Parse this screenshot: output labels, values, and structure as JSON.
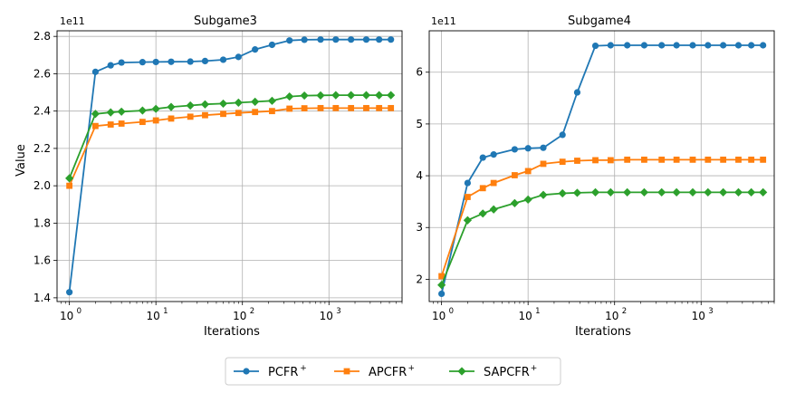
{
  "chart_data": [
    {
      "type": "line",
      "title": "Subgame3",
      "xlabel": "Iterations",
      "ylabel": "Value",
      "xscale": "log",
      "xlim": [
        0.72,
        7000
      ],
      "ylim": [
        1.38,
        2.83
      ],
      "y_multiplier": "1e11",
      "xticks": [
        1,
        10,
        100,
        1000
      ],
      "xtick_labels": [
        {
          "base": "10",
          "exp": "0"
        },
        {
          "base": "10",
          "exp": "1"
        },
        {
          "base": "10",
          "exp": "2"
        },
        {
          "base": "10",
          "exp": "3"
        }
      ],
      "yticks": [
        1.4,
        1.6,
        1.8,
        2.0,
        2.2,
        2.4,
        2.6,
        2.8
      ],
      "ytick_labels": [
        "1.4",
        "1.6",
        "1.8",
        "2.0",
        "2.2",
        "2.4",
        "2.6",
        "2.8"
      ],
      "grid": true,
      "series": [
        {
          "name": "PCFR+",
          "color": "#1f77b4",
          "marker": "circle",
          "x": [
            1,
            2,
            3,
            4,
            7,
            10,
            15,
            25,
            37,
            60,
            90,
            140,
            220,
            350,
            520,
            800,
            1200,
            1800,
            2700,
            3800,
            5200
          ],
          "y": [
            1.43,
            2.61,
            2.645,
            2.66,
            2.662,
            2.663,
            2.664,
            2.665,
            2.668,
            2.675,
            2.69,
            2.73,
            2.755,
            2.778,
            2.782,
            2.783,
            2.783,
            2.783,
            2.783,
            2.783,
            2.783
          ]
        },
        {
          "name": "APCFR+",
          "color": "#ff7f0e",
          "marker": "square",
          "x": [
            1,
            2,
            3,
            4,
            7,
            10,
            15,
            25,
            37,
            60,
            90,
            140,
            220,
            350,
            520,
            800,
            1200,
            1800,
            2700,
            3800,
            5200
          ],
          "y": [
            2.0,
            2.32,
            2.328,
            2.333,
            2.342,
            2.35,
            2.36,
            2.37,
            2.378,
            2.385,
            2.39,
            2.395,
            2.4,
            2.413,
            2.415,
            2.416,
            2.416,
            2.416,
            2.416,
            2.416,
            2.416
          ]
        },
        {
          "name": "SAPCFR+",
          "color": "#2ca02c",
          "marker": "diamond",
          "x": [
            1,
            2,
            3,
            4,
            7,
            10,
            15,
            25,
            37,
            60,
            90,
            140,
            220,
            350,
            520,
            800,
            1200,
            1800,
            2700,
            3800,
            5200
          ],
          "y": [
            2.04,
            2.385,
            2.393,
            2.397,
            2.403,
            2.412,
            2.422,
            2.43,
            2.436,
            2.44,
            2.445,
            2.45,
            2.455,
            2.478,
            2.483,
            2.484,
            2.485,
            2.485,
            2.485,
            2.485,
            2.485
          ]
        }
      ]
    },
    {
      "type": "line",
      "title": "Subgame4",
      "xlabel": "Iterations",
      "ylabel": "",
      "xscale": "log",
      "xlim": [
        0.72,
        7000
      ],
      "ylim": [
        1.57,
        6.8
      ],
      "y_multiplier": "1e11",
      "xticks": [
        1,
        10,
        100,
        1000
      ],
      "xtick_labels": [
        {
          "base": "10",
          "exp": "0"
        },
        {
          "base": "10",
          "exp": "1"
        },
        {
          "base": "10",
          "exp": "2"
        },
        {
          "base": "10",
          "exp": "3"
        }
      ],
      "yticks": [
        2,
        3,
        4,
        5,
        6
      ],
      "ytick_labels": [
        "2",
        "3",
        "4",
        "5",
        "6"
      ],
      "grid": true,
      "series": [
        {
          "name": "PCFR+",
          "color": "#1f77b4",
          "marker": "circle",
          "x": [
            1,
            2,
            3,
            4,
            7,
            10,
            15,
            25,
            37,
            60,
            90,
            140,
            220,
            350,
            520,
            800,
            1200,
            1800,
            2700,
            3800,
            5200
          ],
          "y": [
            1.72,
            3.86,
            4.35,
            4.41,
            4.51,
            4.53,
            4.54,
            4.79,
            5.61,
            6.51,
            6.52,
            6.52,
            6.52,
            6.52,
            6.52,
            6.52,
            6.52,
            6.52,
            6.52,
            6.52,
            6.52
          ]
        },
        {
          "name": "APCFR+",
          "color": "#ff7f0e",
          "marker": "square",
          "x": [
            1,
            2,
            3,
            4,
            7,
            10,
            15,
            25,
            37,
            60,
            90,
            140,
            220,
            350,
            520,
            800,
            1200,
            1800,
            2700,
            3800,
            5200
          ],
          "y": [
            2.06,
            3.59,
            3.76,
            3.86,
            4.01,
            4.09,
            4.23,
            4.27,
            4.29,
            4.3,
            4.3,
            4.31,
            4.31,
            4.31,
            4.31,
            4.31,
            4.31,
            4.31,
            4.31,
            4.31,
            4.31
          ]
        },
        {
          "name": "SAPCFR+",
          "color": "#2ca02c",
          "marker": "diamond",
          "x": [
            1,
            2,
            3,
            4,
            7,
            10,
            15,
            25,
            37,
            60,
            90,
            140,
            220,
            350,
            520,
            800,
            1200,
            1800,
            2700,
            3800,
            5200
          ],
          "y": [
            1.89,
            3.14,
            3.27,
            3.35,
            3.47,
            3.54,
            3.63,
            3.66,
            3.67,
            3.68,
            3.68,
            3.68,
            3.68,
            3.68,
            3.68,
            3.68,
            3.68,
            3.68,
            3.68,
            3.68,
            3.68
          ]
        }
      ]
    }
  ],
  "legend": {
    "placement": "bottom-center",
    "entries": [
      {
        "base": "PCFR",
        "sup": "+",
        "color": "#1f77b4",
        "marker": "circle"
      },
      {
        "base": "APCFR",
        "sup": "+",
        "color": "#ff7f0e",
        "marker": "square"
      },
      {
        "base": "SAPCFR",
        "sup": "+",
        "color": "#2ca02c",
        "marker": "diamond"
      }
    ]
  }
}
